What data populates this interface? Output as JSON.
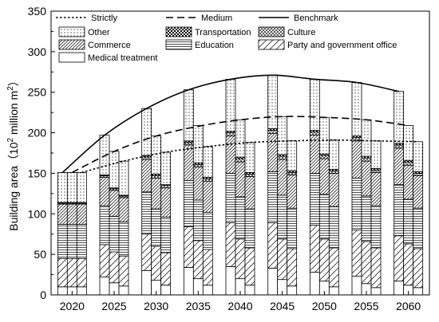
{
  "chart_data": {
    "type": "bar",
    "stacked": true,
    "ylabel": "Building area（10",
    "ylabel_superscript": "2",
    "ylabel_suffix": " million m",
    "ylabel_sup2": "2",
    "ylabel_close": "）",
    "ylim": [
      0,
      350
    ],
    "y_ticks": [
      "0",
      "50",
      "100",
      "150",
      "200",
      "250",
      "300",
      "350"
    ],
    "categories": [
      "2020",
      "2025",
      "2030",
      "2035",
      "2040",
      "2045",
      "2050",
      "2055",
      "2060"
    ],
    "scenarios": [
      "Benchmark",
      "Medium",
      "Strictly"
    ],
    "bar_totals": [
      [
        151,
        151,
        151
      ],
      [
        197,
        177,
        165
      ],
      [
        230,
        196,
        176
      ],
      [
        253,
        208,
        183
      ],
      [
        266,
        216,
        188
      ],
      [
        271,
        220,
        190
      ],
      [
        266,
        219,
        191
      ],
      [
        262,
        216,
        190
      ],
      [
        251,
        209,
        189
      ]
    ],
    "series": [
      {
        "name": "Medical treatment",
        "pattern": "blank",
        "values": [
          [
            10,
            10,
            10
          ],
          [
            22,
            15,
            11
          ],
          [
            30,
            18,
            12
          ],
          [
            34,
            20,
            12
          ],
          [
            35,
            20,
            12
          ],
          [
            33,
            19,
            11
          ],
          [
            28,
            17,
            10
          ],
          [
            23,
            14,
            9
          ],
          [
            17,
            12,
            9
          ]
        ]
      },
      {
        "name": "Party and government office",
        "pattern": "diag-sparse",
        "values": [
          [
            35,
            35,
            35
          ],
          [
            40,
            38,
            37
          ],
          [
            45,
            42,
            40
          ],
          [
            50,
            47,
            44
          ],
          [
            54,
            49,
            46
          ],
          [
            56,
            50,
            46
          ],
          [
            58,
            52,
            48
          ],
          [
            57,
            52,
            49
          ],
          [
            56,
            51,
            48
          ]
        ]
      },
      {
        "name": "Education",
        "pattern": "hlines",
        "values": [
          [
            42,
            42,
            42
          ],
          [
            48,
            44,
            42
          ],
          [
            52,
            46,
            44
          ],
          [
            57,
            50,
            46
          ],
          [
            61,
            52,
            48
          ],
          [
            63,
            54,
            50
          ],
          [
            64,
            55,
            51
          ],
          [
            64,
            56,
            52
          ],
          [
            63,
            55,
            50
          ]
        ]
      },
      {
        "name": "Commerce",
        "pattern": "diag-dense",
        "values": [
          [
            25,
            25,
            25
          ],
          [
            35,
            32,
            30
          ],
          [
            40,
            38,
            36
          ],
          [
            44,
            41,
            38
          ],
          [
            46,
            43,
            40
          ],
          [
            47,
            44,
            41
          ],
          [
            47,
            44,
            41
          ],
          [
            46,
            43,
            41
          ],
          [
            45,
            42,
            40
          ]
        ]
      },
      {
        "name": "Culture",
        "pattern": "crosshatch",
        "values": [
          [
            1,
            1,
            1
          ],
          [
            2,
            2,
            2
          ],
          [
            3,
            3,
            3
          ],
          [
            3,
            3,
            3
          ],
          [
            4,
            4,
            3
          ],
          [
            4,
            4,
            3
          ],
          [
            4,
            4,
            3
          ],
          [
            4,
            4,
            3
          ],
          [
            4,
            4,
            3
          ]
        ]
      },
      {
        "name": "Transportation",
        "pattern": "checker",
        "values": [
          [
            1,
            1,
            1
          ],
          [
            1,
            1,
            1
          ],
          [
            2,
            2,
            1
          ],
          [
            2,
            2,
            2
          ],
          [
            2,
            2,
            2
          ],
          [
            2,
            2,
            2
          ],
          [
            2,
            2,
            2
          ],
          [
            2,
            2,
            2
          ],
          [
            2,
            2,
            2
          ]
        ]
      },
      {
        "name": "Other",
        "pattern": "dots",
        "values": [
          [
            37,
            37,
            37
          ],
          [
            49,
            45,
            42
          ],
          [
            58,
            47,
            40
          ],
          [
            63,
            46,
            38
          ],
          [
            64,
            46,
            37
          ],
          [
            66,
            47,
            37
          ],
          [
            63,
            45,
            36
          ],
          [
            66,
            45,
            34
          ],
          [
            64,
            43,
            37
          ]
        ]
      }
    ],
    "lines": [
      {
        "name": "Strictly",
        "style": "dotted",
        "values": [
          151,
          165,
          176,
          183,
          188,
          190,
          191,
          190,
          189
        ]
      },
      {
        "name": "Medium",
        "style": "dashed",
        "values": [
          151,
          177,
          196,
          208,
          216,
          220,
          219,
          216,
          209
        ]
      },
      {
        "name": "Benchmark",
        "style": "solid",
        "values": [
          151,
          197,
          230,
          253,
          266,
          271,
          266,
          262,
          251
        ]
      }
    ],
    "legend": {
      "row1": [
        "Strictly",
        "Medium",
        "Benchmark"
      ],
      "grid": [
        {
          "label": "Other",
          "pattern": "dots"
        },
        {
          "label": "Transportation",
          "pattern": "checker"
        },
        {
          "label": "Culture",
          "pattern": "crosshatch"
        },
        {
          "label": "Commerce",
          "pattern": "diag-dense"
        },
        {
          "label": "Education",
          "pattern": "hlines"
        },
        {
          "label": "Party and government office",
          "pattern": "diag-sparse"
        },
        {
          "label": "Medical treatment",
          "pattern": "blank"
        }
      ]
    }
  }
}
